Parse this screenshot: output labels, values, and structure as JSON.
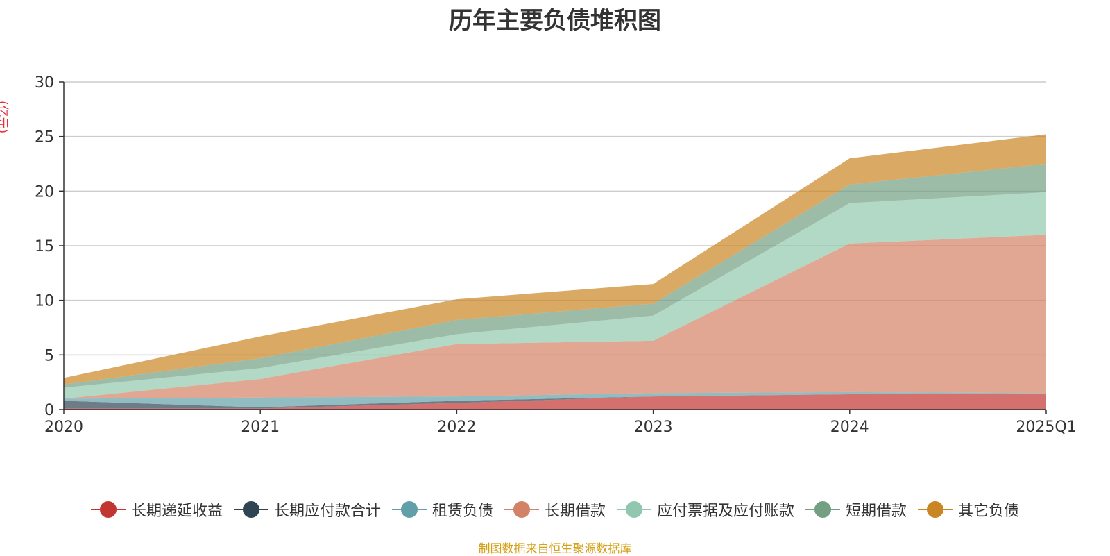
{
  "chart_data": {
    "type": "area",
    "stacked": true,
    "title": "历年主要负债堆积图",
    "ylabel": "(亿元)",
    "xlabel": "",
    "categories": [
      "2020",
      "2021",
      "2022",
      "2023",
      "2024",
      "2025Q1"
    ],
    "ylim": [
      0,
      30
    ],
    "yticks": [
      0,
      5,
      10,
      15,
      20,
      25,
      30
    ],
    "grid": true,
    "legend_position": "bottom",
    "series": [
      {
        "name": "长期递延收益",
        "color": "#c23531",
        "values": [
          0.1,
          0.1,
          0.6,
          1.2,
          1.4,
          1.4
        ]
      },
      {
        "name": "长期应付款合计",
        "color": "#2f4554",
        "values": [
          0.7,
          0.1,
          0.2,
          0.0,
          0.0,
          0.0
        ]
      },
      {
        "name": "租赁负债",
        "color": "#61a0a8",
        "values": [
          0.2,
          0.9,
          0.4,
          0.3,
          0.2,
          0.1
        ]
      },
      {
        "name": "长期借款",
        "color": "#d48265",
        "values": [
          0.0,
          1.7,
          4.8,
          4.8,
          13.6,
          14.5
        ]
      },
      {
        "name": "应付票据及应付账款",
        "color": "#91c7ae",
        "values": [
          1.0,
          1.0,
          0.9,
          2.3,
          3.7,
          3.9
        ]
      },
      {
        "name": "短期借款",
        "color": "#749f83",
        "values": [
          0.3,
          0.9,
          1.3,
          1.1,
          1.7,
          2.6
        ]
      },
      {
        "name": "其它负债",
        "color": "#ca8622",
        "values": [
          0.6,
          2.0,
          1.9,
          1.8,
          2.4,
          2.7
        ]
      }
    ]
  },
  "source": "制图数据来自恒生聚源数据库"
}
